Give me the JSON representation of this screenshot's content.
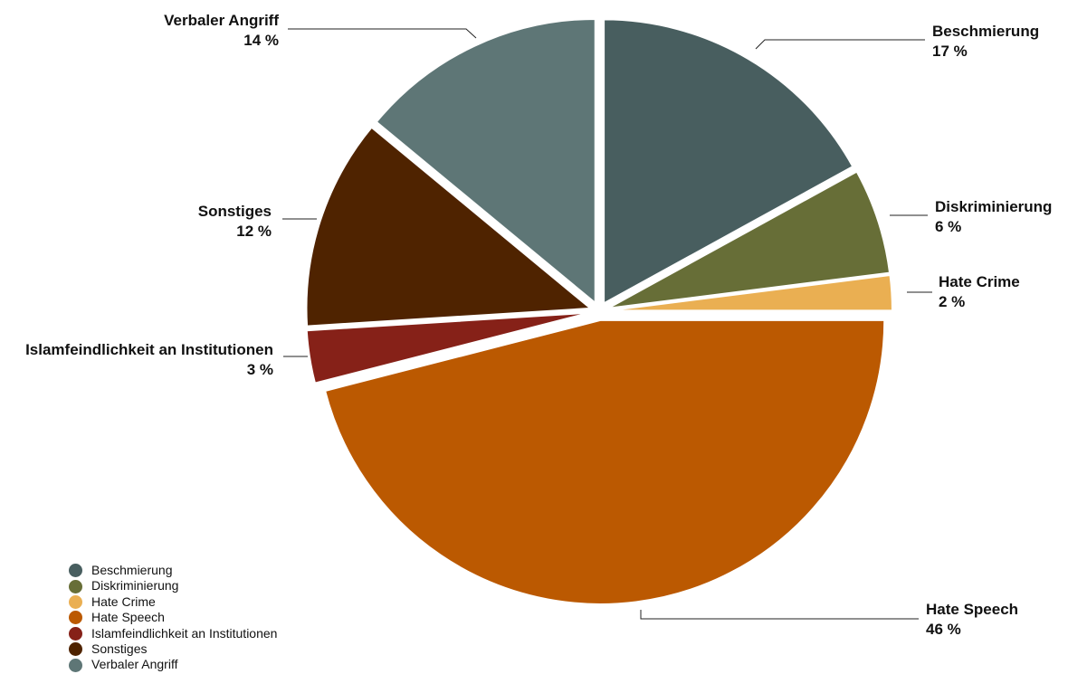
{
  "chart_data": {
    "type": "pie",
    "slices": [
      {
        "label": "Beschmierung",
        "value": 17,
        "value_label": "17 %",
        "color": "#485E5F"
      },
      {
        "label": "Diskriminierung",
        "value": 6,
        "value_label": "6 %",
        "color": "#676E37"
      },
      {
        "label": "Hate Crime",
        "value": 2,
        "value_label": "2 %",
        "color": "#EAAF52"
      },
      {
        "label": "Hate Speech",
        "value": 46,
        "value_label": "46 %",
        "color": "#BB5901"
      },
      {
        "label": "Islamfeindlichkeit an Institutionen",
        "value": 3,
        "value_label": "3 %",
        "color": "#862118"
      },
      {
        "label": "Sonstiges",
        "value": 12,
        "value_label": "12 %",
        "color": "#4F2300"
      },
      {
        "label": "Verbaler Angriff",
        "value": 14,
        "value_label": "14 %",
        "color": "#5E7676"
      }
    ],
    "start_angle_deg": 0,
    "direction": "clockwise",
    "legend_position": "bottom-left"
  }
}
